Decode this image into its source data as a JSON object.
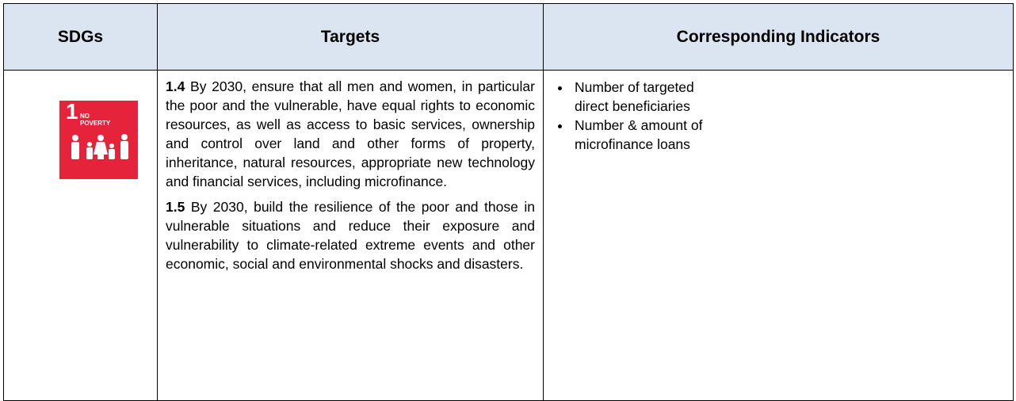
{
  "table": {
    "headers": [
      "SDGs",
      "Targets",
      "Corresponding Indicators"
    ],
    "sdg": {
      "number": "1",
      "line1": "NO",
      "line2": "POVERTY"
    },
    "targets": [
      {
        "number": "1.4",
        "text": "By 2030, ensure that all men and women, in particular the poor and the vulnerable, have equal rights to economic resources, as well as access to basic services, ownership and control over land and other forms of property, inheritance, natural resources, appropriate new technology and financial services, including microfinance."
      },
      {
        "number": "1.5",
        "text": "By 2030, build the resilience of the poor and those in vulnerable situations and reduce their exposure and vulnerability to climate-related extreme events and other economic, social and environmental shocks and disasters."
      }
    ],
    "indicators": [
      "Number of targeted direct beneficiaries",
      "Number & amount of microfinance loans"
    ]
  }
}
